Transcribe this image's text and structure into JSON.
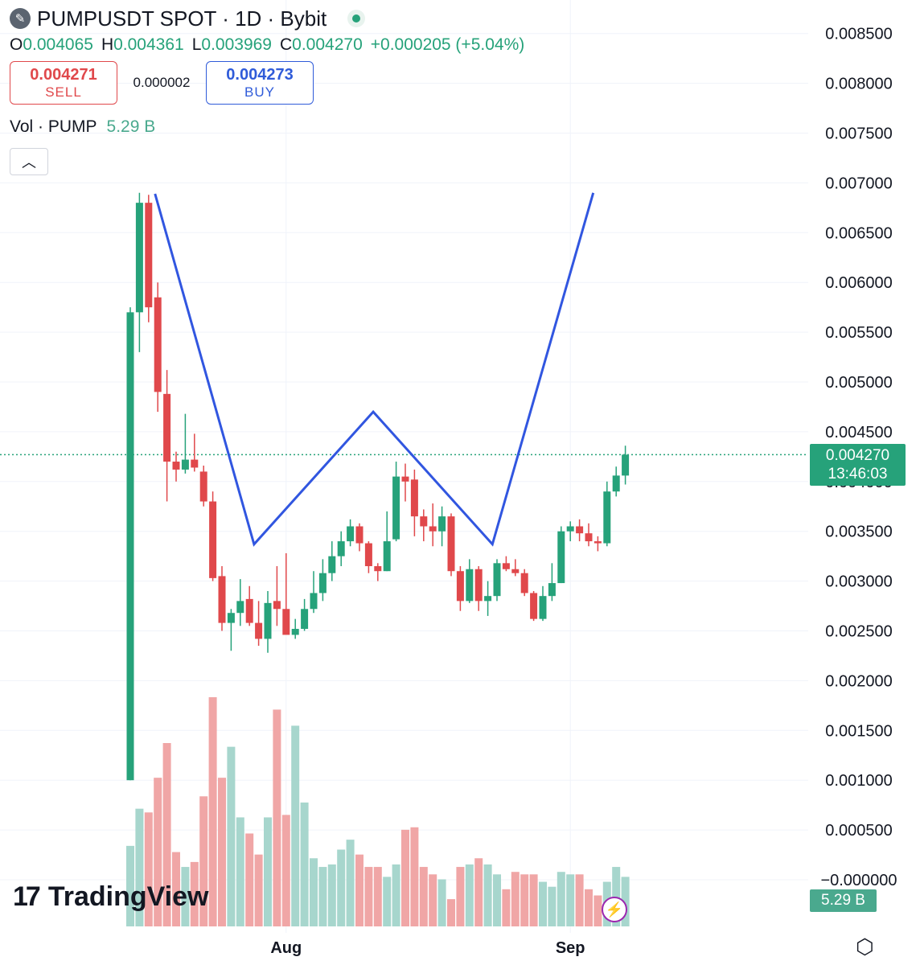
{
  "header": {
    "symbol_icon": "pencil-icon",
    "title": "PUMPUSDT SPOT · 1D · Bybit",
    "ohlc": {
      "o_label": "O",
      "o": "0.004065",
      "h_label": "H",
      "h": "0.004361",
      "l_label": "L",
      "l": "0.003969",
      "c_label": "C",
      "c": "0.004270",
      "change": "+0.000205 (+5.04%)"
    },
    "sell": {
      "price": "0.004271",
      "label": "SELL"
    },
    "spread": "0.000002",
    "buy": {
      "price": "0.004273",
      "label": "BUY"
    },
    "volume": {
      "label": "Vol · PUMP",
      "value": "5.29 B"
    }
  },
  "price_label": {
    "price": "0.004270",
    "countdown": "13:46:03"
  },
  "volume_label": "5.29 B",
  "brand": {
    "mark": "17",
    "name": "TradingView"
  },
  "colors": {
    "up": "#26a27a",
    "down": "#e0484b",
    "pattern": "#3156e0",
    "up_vol": "#a7d6cd",
    "down_vol": "#f0a6a6"
  },
  "chart_data": {
    "type": "candlestick",
    "y_ticks": [
      "0.008500",
      "0.008000",
      "0.007500",
      "0.007000",
      "0.006500",
      "0.006000",
      "0.005500",
      "0.005000",
      "0.004500",
      "0.004000",
      "0.003500",
      "0.003000",
      "0.002500",
      "0.002000",
      "0.001500",
      "0.001000",
      "0.000500",
      "−0.000000"
    ],
    "y_range": [
      0.0,
      0.0085
    ],
    "x_ticks": [
      {
        "label": "Aug",
        "day": 17
      },
      {
        "label": "Sep",
        "day": 48
      }
    ],
    "candles": [
      {
        "o": 0.001,
        "h": 0.00575,
        "l": 0.001,
        "c": 0.0057
      },
      {
        "o": 0.0057,
        "h": 0.0069,
        "l": 0.0053,
        "c": 0.0068
      },
      {
        "o": 0.0068,
        "h": 0.00688,
        "l": 0.0056,
        "c": 0.00575
      },
      {
        "o": 0.00585,
        "h": 0.006,
        "l": 0.0047,
        "c": 0.0049
      },
      {
        "o": 0.00488,
        "h": 0.00512,
        "l": 0.0038,
        "c": 0.0042
      },
      {
        "o": 0.0042,
        "h": 0.0043,
        "l": 0.004,
        "c": 0.00412
      },
      {
        "o": 0.00412,
        "h": 0.00468,
        "l": 0.00408,
        "c": 0.00422
      },
      {
        "o": 0.00422,
        "h": 0.00448,
        "l": 0.0041,
        "c": 0.00414
      },
      {
        "o": 0.0041,
        "h": 0.00416,
        "l": 0.00375,
        "c": 0.0038
      },
      {
        "o": 0.0038,
        "h": 0.0039,
        "l": 0.003,
        "c": 0.00303
      },
      {
        "o": 0.00305,
        "h": 0.00315,
        "l": 0.0025,
        "c": 0.00258
      },
      {
        "o": 0.00258,
        "h": 0.00272,
        "l": 0.0023,
        "c": 0.00268
      },
      {
        "o": 0.00268,
        "h": 0.00302,
        "l": 0.00255,
        "c": 0.0028
      },
      {
        "o": 0.00282,
        "h": 0.00295,
        "l": 0.00255,
        "c": 0.00258
      },
      {
        "o": 0.00258,
        "h": 0.0028,
        "l": 0.00235,
        "c": 0.00242
      },
      {
        "o": 0.00242,
        "h": 0.0029,
        "l": 0.00228,
        "c": 0.00278
      },
      {
        "o": 0.0028,
        "h": 0.00315,
        "l": 0.00255,
        "c": 0.00272
      },
      {
        "o": 0.00272,
        "h": 0.00328,
        "l": 0.00248,
        "c": 0.00246
      },
      {
        "o": 0.00246,
        "h": 0.00262,
        "l": 0.00242,
        "c": 0.00252
      },
      {
        "o": 0.00252,
        "h": 0.00282,
        "l": 0.0025,
        "c": 0.00272
      },
      {
        "o": 0.00272,
        "h": 0.0031,
        "l": 0.00268,
        "c": 0.00288
      },
      {
        "o": 0.00288,
        "h": 0.00322,
        "l": 0.0028,
        "c": 0.00308
      },
      {
        "o": 0.00308,
        "h": 0.0034,
        "l": 0.003,
        "c": 0.00325
      },
      {
        "o": 0.00325,
        "h": 0.0035,
        "l": 0.00315,
        "c": 0.0034
      },
      {
        "o": 0.0034,
        "h": 0.00362,
        "l": 0.00335,
        "c": 0.00355
      },
      {
        "o": 0.00355,
        "h": 0.00358,
        "l": 0.0033,
        "c": 0.00338
      },
      {
        "o": 0.00338,
        "h": 0.0034,
        "l": 0.00308,
        "c": 0.00315
      },
      {
        "o": 0.00315,
        "h": 0.00318,
        "l": 0.003,
        "c": 0.0031
      },
      {
        "o": 0.0031,
        "h": 0.0037,
        "l": 0.0031,
        "c": 0.0034
      },
      {
        "o": 0.00342,
        "h": 0.0042,
        "l": 0.0034,
        "c": 0.00405
      },
      {
        "o": 0.00405,
        "h": 0.00418,
        "l": 0.0038,
        "c": 0.004
      },
      {
        "o": 0.00402,
        "h": 0.00412,
        "l": 0.00345,
        "c": 0.00365
      },
      {
        "o": 0.00365,
        "h": 0.00372,
        "l": 0.0034,
        "c": 0.00355
      },
      {
        "o": 0.00355,
        "h": 0.00378,
        "l": 0.00335,
        "c": 0.0035
      },
      {
        "o": 0.0035,
        "h": 0.00375,
        "l": 0.00335,
        "c": 0.00365
      },
      {
        "o": 0.00365,
        "h": 0.00368,
        "l": 0.00305,
        "c": 0.0031
      },
      {
        "o": 0.0031,
        "h": 0.00315,
        "l": 0.0027,
        "c": 0.0028
      },
      {
        "o": 0.0028,
        "h": 0.00322,
        "l": 0.00278,
        "c": 0.00312
      },
      {
        "o": 0.00312,
        "h": 0.00315,
        "l": 0.0027,
        "c": 0.0028
      },
      {
        "o": 0.0028,
        "h": 0.003,
        "l": 0.00265,
        "c": 0.00285
      },
      {
        "o": 0.00285,
        "h": 0.00322,
        "l": 0.0028,
        "c": 0.00318
      },
      {
        "o": 0.00318,
        "h": 0.00325,
        "l": 0.0031,
        "c": 0.00312
      },
      {
        "o": 0.00312,
        "h": 0.00322,
        "l": 0.00305,
        "c": 0.00308
      },
      {
        "o": 0.00308,
        "h": 0.00312,
        "l": 0.00285,
        "c": 0.00288
      },
      {
        "o": 0.00288,
        "h": 0.0029,
        "l": 0.0026,
        "c": 0.00262
      },
      {
        "o": 0.00262,
        "h": 0.00295,
        "l": 0.0026,
        "c": 0.00285
      },
      {
        "o": 0.00285,
        "h": 0.00318,
        "l": 0.0028,
        "c": 0.00298
      },
      {
        "o": 0.00298,
        "h": 0.00355,
        "l": 0.00298,
        "c": 0.0035
      },
      {
        "o": 0.0035,
        "h": 0.0036,
        "l": 0.0034,
        "c": 0.00355
      },
      {
        "o": 0.00355,
        "h": 0.00362,
        "l": 0.0034,
        "c": 0.00348
      },
      {
        "o": 0.00348,
        "h": 0.00358,
        "l": 0.00335,
        "c": 0.0034
      },
      {
        "o": 0.0034,
        "h": 0.00345,
        "l": 0.0033,
        "c": 0.00338
      },
      {
        "o": 0.00338,
        "h": 0.004,
        "l": 0.00335,
        "c": 0.0039
      },
      {
        "o": 0.0039,
        "h": 0.00415,
        "l": 0.00385,
        "c": 0.00406
      },
      {
        "o": 0.00406,
        "h": 0.00436,
        "l": 0.00397,
        "c": 0.00427
      }
    ],
    "volume_scale_note": "",
    "volumes": [
      0.65,
      0.95,
      0.92,
      1.2,
      1.48,
      0.6,
      0.48,
      0.52,
      1.05,
      1.85,
      1.2,
      1.45,
      0.88,
      0.75,
      0.58,
      0.88,
      1.75,
      0.9,
      1.62,
      1.0,
      0.55,
      0.48,
      0.5,
      0.62,
      0.7,
      0.58,
      0.48,
      0.48,
      0.4,
      0.5,
      0.78,
      0.8,
      0.48,
      0.42,
      0.38,
      0.22,
      0.48,
      0.5,
      0.55,
      0.5,
      0.42,
      0.3,
      0.44,
      0.42,
      0.42,
      0.36,
      0.32,
      0.44,
      0.42,
      0.42,
      0.3,
      0.25,
      0.36,
      0.48,
      0.4
    ],
    "pattern_line": [
      {
        "day": 2.7,
        "price": 0.00689
      },
      {
        "day": 13.5,
        "price": 0.00337
      },
      {
        "day": 26.5,
        "price": 0.0047
      },
      {
        "day": 39.5,
        "price": 0.00337
      },
      {
        "day": 50.5,
        "price": 0.0069
      }
    ]
  }
}
